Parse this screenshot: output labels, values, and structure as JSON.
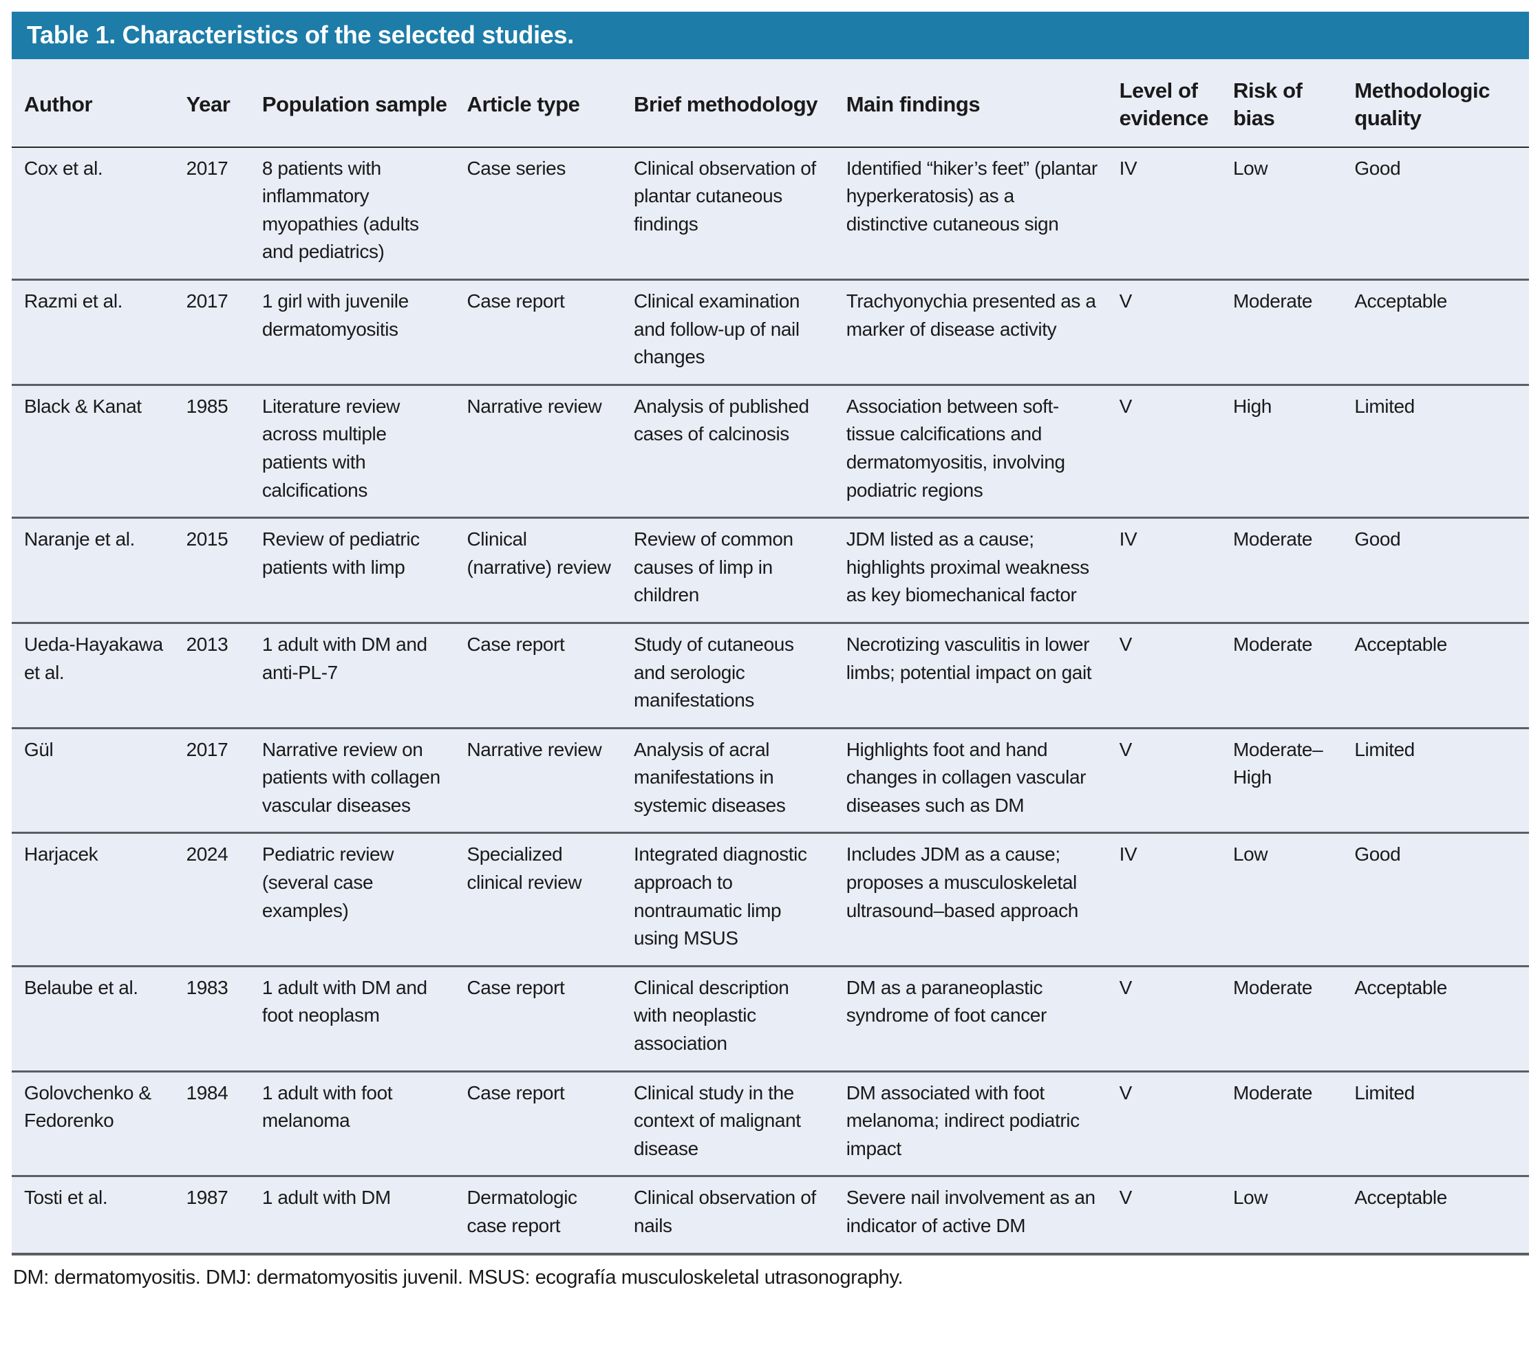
{
  "colors": {
    "title_bar_bg": "#1d7ca8",
    "title_text": "#ffffff",
    "table_bg": "#e9edf6",
    "row_divider": "#5b5e62"
  },
  "table": {
    "title": "Table 1. Characteristics of the selected studies.",
    "columns": [
      "Author",
      "Year",
      "Population sample",
      "Article type",
      "Brief methodology",
      "Main findings",
      "Level of evidence",
      "Risk of bias",
      "Methodologic quality"
    ],
    "rows": [
      {
        "author": "Cox et al.",
        "year": "2017",
        "population": "8 patients with inflammatory myopathies (adults and pediatrics)",
        "article_type": "Case series",
        "methodology": "Clinical observation of plantar cutaneous findings",
        "findings": "Identified “hiker’s feet” (plantar hyperkeratosis) as a distinctive cutaneous sign",
        "evidence": "IV",
        "bias": "Low",
        "quality": "Good"
      },
      {
        "author": "Razmi et al.",
        "year": "2017",
        "population": "1 girl with juvenile dermatomyositis",
        "article_type": "Case report",
        "methodology": "Clinical examination and follow-up of nail changes",
        "findings": "Trachyonychia presented as a marker of disease activity",
        "evidence": "V",
        "bias": "Moderate",
        "quality": "Acceptable"
      },
      {
        "author": "Black & Kanat",
        "year": "1985",
        "population": "Literature review across multiple patients with calcifications",
        "article_type": "Narrative review",
        "methodology": "Analysis of published cases of calcinosis",
        "findings": "Association between soft-tissue calcifications and dermatomyositis, involving podiatric regions",
        "evidence": "V",
        "bias": "High",
        "quality": "Limited"
      },
      {
        "author": "Naranje et al.",
        "year": "2015",
        "population": "Review of pediatric patients with limp",
        "article_type": "Clinical (narrative) review",
        "methodology": "Review of common causes of limp in children",
        "findings": "JDM listed as a cause; highlights proximal weakness as key biomechanical factor",
        "evidence": "IV",
        "bias": "Moderate",
        "quality": "Good"
      },
      {
        "author": "Ueda-Hayakawa et al.",
        "year": "2013",
        "population": "1 adult with DM and anti-PL-7",
        "article_type": "Case report",
        "methodology": "Study of cutaneous and serologic manifestations",
        "findings": "Necrotizing vasculitis in lower limbs; potential impact on gait",
        "evidence": "V",
        "bias": "Moderate",
        "quality": "Acceptable"
      },
      {
        "author": "Gül",
        "year": "2017",
        "population": "Narrative review on patients with collagen vascular diseases",
        "article_type": "Narrative review",
        "methodology": "Analysis of acral manifestations in systemic diseases",
        "findings": "Highlights foot and hand changes in collagen vascular diseases such as DM",
        "evidence": "V",
        "bias": "Moderate–High",
        "quality": "Limited"
      },
      {
        "author": "Harjacek",
        "year": "2024",
        "population": "Pediatric review (several case examples)",
        "article_type": "Specialized clinical review",
        "methodology": "Integrated diagnostic approach to nontraumatic limp using MSUS",
        "findings": "Includes JDM as a cause; proposes a musculoskeletal ultrasound–based approach",
        "evidence": "IV",
        "bias": "Low",
        "quality": "Good"
      },
      {
        "author": "Belaube et al.",
        "year": "1983",
        "population": "1 adult with DM and foot neoplasm",
        "article_type": "Case report",
        "methodology": "Clinical description with neoplastic association",
        "findings": "DM as a paraneoplastic syndrome of foot cancer",
        "evidence": "V",
        "bias": "Moderate",
        "quality": "Acceptable"
      },
      {
        "author": "Golovchenko & Fedorenko",
        "year": "1984",
        "population": "1 adult with foot melanoma",
        "article_type": "Case report",
        "methodology": "Clinical study in the context of malignant disease",
        "findings": "DM associated with foot melanoma; indirect podiatric impact",
        "evidence": "V",
        "bias": "Moderate",
        "quality": "Limited"
      },
      {
        "author": "Tosti et al.",
        "year": "1987",
        "population": "1 adult with DM",
        "article_type": "Dermatologic case report",
        "methodology": "Clinical observation of nails",
        "findings": "Severe nail involvement as an indicator of active DM",
        "evidence": "V",
        "bias": "Low",
        "quality": "Acceptable"
      }
    ],
    "footnote": "DM: dermatomyositis. DMJ: dermatomyositis juvenil. MSUS: ecografía musculoskeletal utrasonography."
  }
}
